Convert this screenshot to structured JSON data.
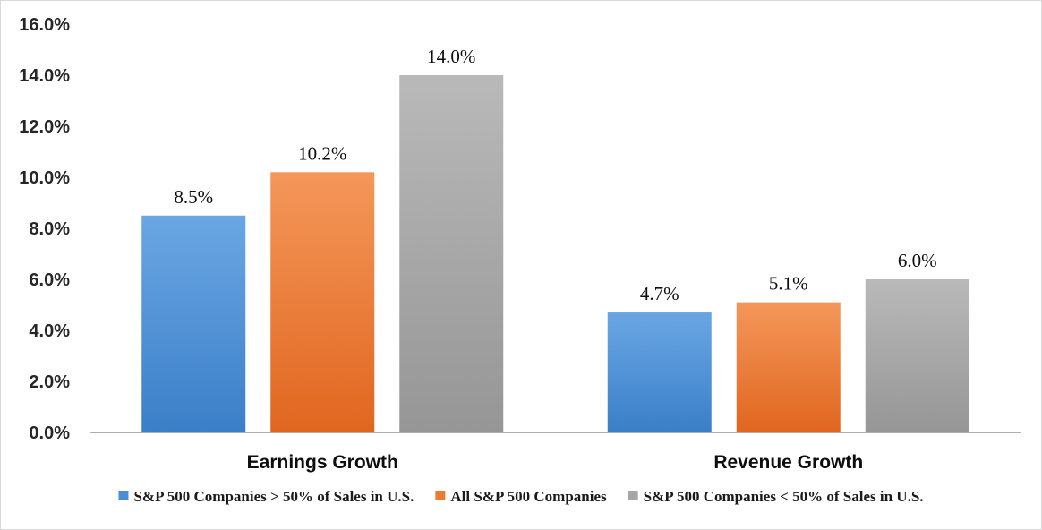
{
  "chart_data": {
    "type": "bar",
    "categories": [
      "Earnings Growth",
      "Revenue Growth"
    ],
    "series": [
      {
        "name": "S&P 500 Companies > 50% of Sales in U.S.",
        "values": [
          8.5,
          4.7
        ],
        "labels": [
          "8.5%",
          "4.7%"
        ],
        "color": "#4a8fd6"
      },
      {
        "name": "All S&P 500 Companies",
        "values": [
          10.2,
          5.1
        ],
        "labels": [
          "10.2%",
          "5.1%"
        ],
        "color": "#ed7a32"
      },
      {
        "name": "S&P 500 Companies < 50% of Sales in U.S.",
        "values": [
          14.0,
          6.0
        ],
        "labels": [
          "14.0%",
          "6.0%"
        ],
        "color": "#a6a6a6"
      }
    ],
    "yticks": [
      "0.0%",
      "2.0%",
      "4.0%",
      "6.0%",
      "8.0%",
      "10.0%",
      "12.0%",
      "14.0%",
      "16.0%"
    ],
    "ylim": [
      0,
      16
    ],
    "grid": false,
    "legend_position": "bottom",
    "title": "",
    "xlabel": "",
    "ylabel": ""
  }
}
